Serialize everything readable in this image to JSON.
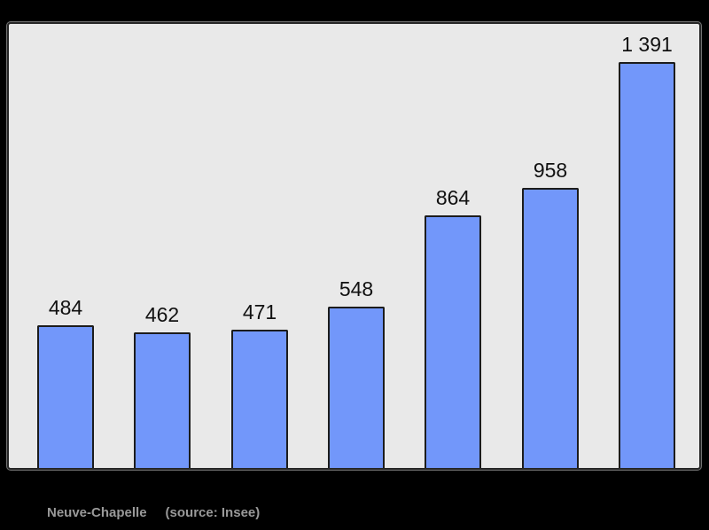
{
  "caption": {
    "title": "Neuve-Chapelle",
    "source": "(source: Insee)"
  },
  "colors": {
    "page_background": "#000000",
    "plot_background": "#e9e9e9",
    "frame_border": "#262626",
    "bar_fill": "#7297fa",
    "bar_border": "#1c1c1c",
    "value_label_text": "#111111",
    "caption_text": "#999999"
  },
  "chart_data": {
    "type": "bar",
    "values": [
      484,
      462,
      471,
      548,
      864,
      958,
      1391
    ],
    "value_labels": [
      "484",
      "462",
      "471",
      "548",
      "864",
      "958",
      "1 391"
    ],
    "title": "",
    "xlabel": "",
    "ylabel": "",
    "x_tick_labels": [],
    "ylim": [
      0,
      1530
    ],
    "grid": false,
    "legend": false,
    "annotations": "values shown above each bar",
    "caption": "Neuve-Chapelle (source: Insee)"
  }
}
